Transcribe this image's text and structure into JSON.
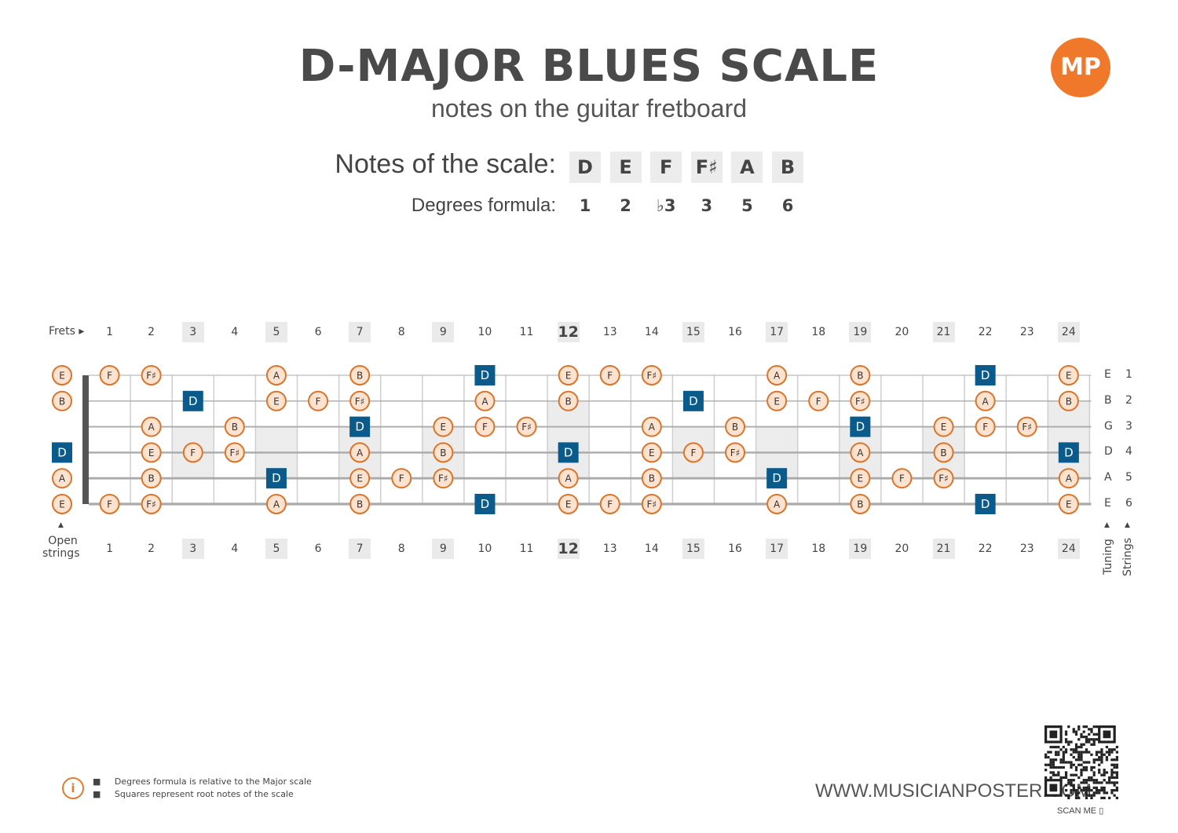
{
  "title": "D-MAJOR BLUES SCALE",
  "subtitle": "notes on the guitar fretboard",
  "logo_text": "MP",
  "notes_label": "Notes of the scale:",
  "degrees_label": "Degrees formula:",
  "scale_notes": [
    "D",
    "E",
    "F",
    "F♯",
    "A",
    "B"
  ],
  "degrees": [
    "1",
    "2",
    "♭3",
    "3",
    "5",
    "6"
  ],
  "frets_label": "Frets ▸",
  "open_strings_label": [
    "Open",
    "strings"
  ],
  "tuning_label": "Tuning",
  "strings_label": "Strings",
  "fret_numbers": [
    "1",
    "2",
    "3",
    "4",
    "5",
    "6",
    "7",
    "8",
    "9",
    "10",
    "11",
    "12",
    "13",
    "14",
    "15",
    "16",
    "17",
    "18",
    "19",
    "20",
    "21",
    "22",
    "23",
    "24"
  ],
  "inlay_frets": [
    3,
    5,
    7,
    9,
    12,
    15,
    17,
    19,
    21,
    24
  ],
  "tuning": [
    "E",
    "B",
    "G",
    "D",
    "A",
    "E"
  ],
  "string_numbers": [
    "1",
    "2",
    "3",
    "4",
    "5",
    "6"
  ],
  "fretboard_notes": [
    [
      [
        0,
        "E",
        "n"
      ],
      [
        1,
        "F",
        "n"
      ],
      [
        2,
        "F♯",
        "n"
      ],
      [
        5,
        "A",
        "n"
      ],
      [
        7,
        "B",
        "n"
      ],
      [
        10,
        "D",
        "r"
      ],
      [
        12,
        "E",
        "n"
      ],
      [
        13,
        "F",
        "n"
      ],
      [
        14,
        "F♯",
        "n"
      ],
      [
        17,
        "A",
        "n"
      ],
      [
        19,
        "B",
        "n"
      ],
      [
        22,
        "D",
        "r"
      ],
      [
        24,
        "E",
        "n"
      ]
    ],
    [
      [
        0,
        "B",
        "n"
      ],
      [
        3,
        "D",
        "r"
      ],
      [
        5,
        "E",
        "n"
      ],
      [
        6,
        "F",
        "n"
      ],
      [
        7,
        "F♯",
        "n"
      ],
      [
        10,
        "A",
        "n"
      ],
      [
        12,
        "B",
        "n"
      ],
      [
        15,
        "D",
        "r"
      ],
      [
        17,
        "E",
        "n"
      ],
      [
        18,
        "F",
        "n"
      ],
      [
        19,
        "F♯",
        "n"
      ],
      [
        22,
        "A",
        "n"
      ],
      [
        24,
        "B",
        "n"
      ]
    ],
    [
      [
        2,
        "A",
        "n"
      ],
      [
        4,
        "B",
        "n"
      ],
      [
        7,
        "D",
        "r"
      ],
      [
        9,
        "E",
        "n"
      ],
      [
        10,
        "F",
        "n"
      ],
      [
        11,
        "F♯",
        "n"
      ],
      [
        14,
        "A",
        "n"
      ],
      [
        16,
        "B",
        "n"
      ],
      [
        19,
        "D",
        "r"
      ],
      [
        21,
        "E",
        "n"
      ],
      [
        22,
        "F",
        "n"
      ],
      [
        23,
        "F♯",
        "n"
      ]
    ],
    [
      [
        0,
        "D",
        "r"
      ],
      [
        2,
        "E",
        "n"
      ],
      [
        3,
        "F",
        "n"
      ],
      [
        4,
        "F♯",
        "n"
      ],
      [
        7,
        "A",
        "n"
      ],
      [
        9,
        "B",
        "n"
      ],
      [
        12,
        "D",
        "r"
      ],
      [
        14,
        "E",
        "n"
      ],
      [
        15,
        "F",
        "n"
      ],
      [
        16,
        "F♯",
        "n"
      ],
      [
        19,
        "A",
        "n"
      ],
      [
        21,
        "B",
        "n"
      ],
      [
        24,
        "D",
        "r"
      ]
    ],
    [
      [
        0,
        "A",
        "n"
      ],
      [
        2,
        "B",
        "n"
      ],
      [
        5,
        "D",
        "r"
      ],
      [
        7,
        "E",
        "n"
      ],
      [
        8,
        "F",
        "n"
      ],
      [
        9,
        "F♯",
        "n"
      ],
      [
        12,
        "A",
        "n"
      ],
      [
        14,
        "B",
        "n"
      ],
      [
        17,
        "D",
        "r"
      ],
      [
        19,
        "E",
        "n"
      ],
      [
        20,
        "F",
        "n"
      ],
      [
        21,
        "F♯",
        "n"
      ],
      [
        24,
        "A",
        "n"
      ]
    ],
    [
      [
        0,
        "E",
        "n"
      ],
      [
        1,
        "F",
        "n"
      ],
      [
        2,
        "F♯",
        "n"
      ],
      [
        5,
        "A",
        "n"
      ],
      [
        7,
        "B",
        "n"
      ],
      [
        10,
        "D",
        "r"
      ],
      [
        12,
        "E",
        "n"
      ],
      [
        13,
        "F",
        "n"
      ],
      [
        14,
        "F♯",
        "n"
      ],
      [
        17,
        "A",
        "n"
      ],
      [
        19,
        "B",
        "n"
      ],
      [
        22,
        "D",
        "r"
      ],
      [
        24,
        "E",
        "n"
      ]
    ]
  ],
  "info_lines": [
    "Degrees formula is relative to the Major scale",
    "Squares represent root notes of the scale"
  ],
  "website": "WWW.MUSICIANPOSTER.COM",
  "scan_me": "SCAN ME",
  "colors": {
    "root": "#0a5a8c",
    "note_fill": "#fde3cf",
    "note_border": "#d9742c",
    "inlay": "#ececec",
    "accent": "#f0782a"
  }
}
